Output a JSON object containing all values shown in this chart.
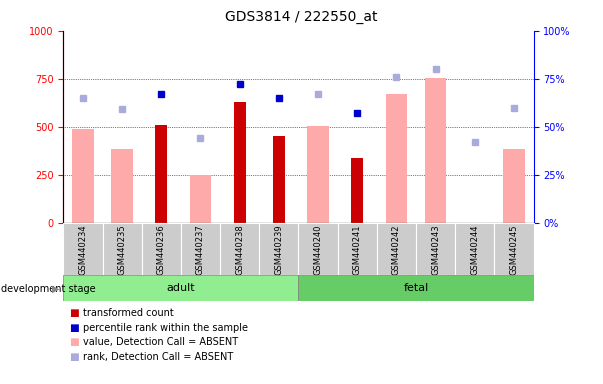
{
  "title": "GDS3814 / 222550_at",
  "samples": [
    "GSM440234",
    "GSM440235",
    "GSM440236",
    "GSM440237",
    "GSM440238",
    "GSM440239",
    "GSM440240",
    "GSM440241",
    "GSM440242",
    "GSM440243",
    "GSM440244",
    "GSM440245"
  ],
  "transformed_count": [
    null,
    null,
    510,
    null,
    630,
    450,
    null,
    335,
    null,
    null,
    null,
    null
  ],
  "percentile_rank": [
    null,
    null,
    67,
    null,
    72,
    65,
    null,
    57,
    null,
    null,
    null,
    null
  ],
  "value_absent": [
    490,
    385,
    null,
    250,
    null,
    null,
    505,
    null,
    670,
    755,
    null,
    385
  ],
  "rank_absent": [
    65,
    59,
    null,
    44,
    null,
    null,
    67,
    null,
    76,
    80,
    42,
    60
  ],
  "ylim_left": [
    0,
    1000
  ],
  "ylim_right": [
    0,
    100
  ],
  "yticks_left": [
    0,
    250,
    500,
    750,
    1000
  ],
  "yticks_right": [
    0,
    25,
    50,
    75,
    100
  ],
  "color_transformed": "#cc0000",
  "color_percentile": "#0000cc",
  "color_value_absent": "#ffaaaa",
  "color_rank_absent": "#aaaadd",
  "group_adult_color": "#90ee90",
  "group_fetal_color": "#66cc66",
  "adult_indices": [
    0,
    1,
    2,
    3,
    4,
    5
  ],
  "fetal_indices": [
    6,
    7,
    8,
    9,
    10,
    11
  ],
  "title_fontsize": 10,
  "group_label_fontsize": 8,
  "legend_fontsize": 7,
  "tick_fontsize": 7,
  "sample_fontsize": 6
}
